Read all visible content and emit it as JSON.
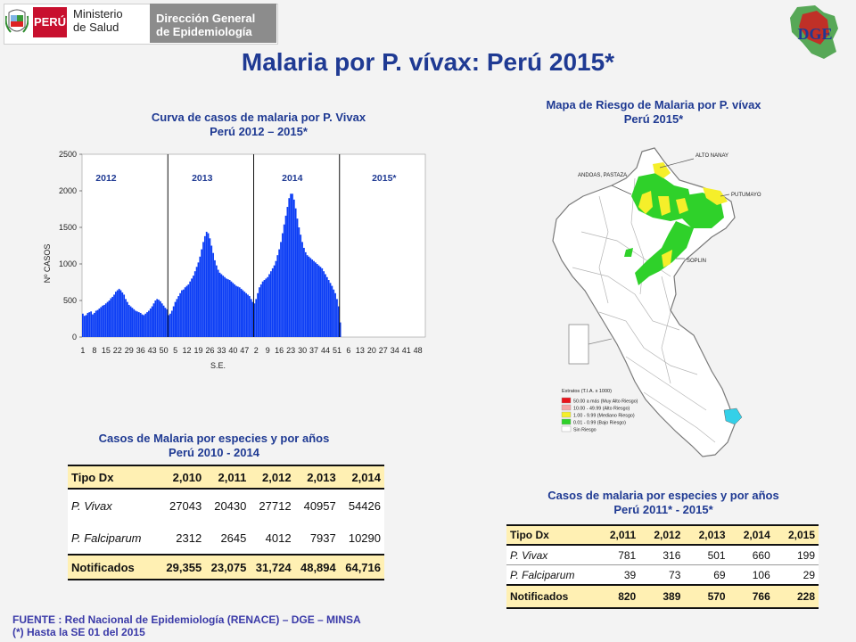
{
  "header": {
    "flag_text": "PERÚ",
    "ministry_line1": "Ministerio",
    "ministry_line2": "de Salud",
    "dge_line1": "Dirección General",
    "dge_line2": "de Epidemiología",
    "dge_logo_text": "DGE"
  },
  "main_title": "Malaria por P. vívax: Perú 2015*",
  "chart_data": {
    "type": "bar",
    "title": "Curva de casos de malaria por P. Vivax",
    "subtitle": "Perú 2012 – 2015*",
    "xlabel": "S.E.",
    "ylabel": "Nº CASOS",
    "ylim": [
      0,
      2500
    ],
    "yticks": [
      0,
      500,
      1000,
      1500,
      2000,
      2500
    ],
    "period_labels": [
      "2012",
      "2013",
      "2014",
      "2015*"
    ],
    "xtick_labels": [
      "1",
      "8",
      "15",
      "22",
      "29",
      "36",
      "43",
      "50",
      "5",
      "12",
      "19",
      "26",
      "33",
      "40",
      "47",
      "2",
      "9",
      "16",
      "23",
      "30",
      "37",
      "44",
      "51",
      "6",
      "13",
      "20",
      "27",
      "34",
      "41",
      "48"
    ],
    "color": "#0b3df5",
    "series": [
      {
        "period": "2012",
        "values": [
          320,
          290,
          300,
          330,
          340,
          350,
          310,
          330,
          360,
          370,
          390,
          410,
          430,
          440,
          460,
          480,
          500,
          530,
          550,
          580,
          620,
          640,
          660,
          640,
          610,
          580,
          520,
          480,
          440,
          420,
          400,
          380,
          360,
          350,
          340,
          330,
          310,
          300,
          320,
          340,
          360,
          390,
          420,
          460,
          500,
          520,
          510,
          490,
          460,
          430,
          400,
          380
        ]
      },
      {
        "period": "2013",
        "values": [
          300,
          320,
          360,
          420,
          480,
          520,
          560,
          600,
          640,
          650,
          680,
          700,
          720,
          760,
          800,
          840,
          900,
          960,
          1020,
          1100,
          1200,
          1300,
          1380,
          1440,
          1420,
          1350,
          1250,
          1150,
          1050,
          980,
          920,
          880,
          860,
          840,
          820,
          800,
          790,
          780,
          760,
          740,
          720,
          700,
          690,
          680,
          660,
          640,
          620,
          600,
          580,
          560,
          520,
          480
        ]
      },
      {
        "period": "2014",
        "values": [
          460,
          520,
          600,
          680,
          720,
          760,
          780,
          800,
          820,
          860,
          900,
          940,
          980,
          1040,
          1120,
          1200,
          1300,
          1420,
          1540,
          1660,
          1780,
          1900,
          1960,
          1960,
          1880,
          1760,
          1620,
          1500,
          1400,
          1300,
          1220,
          1160,
          1120,
          1100,
          1080,
          1060,
          1040,
          1020,
          1000,
          980,
          960,
          940,
          900,
          860,
          820,
          780,
          740,
          700,
          650,
          600,
          520,
          420
        ]
      },
      {
        "period": "2015*",
        "values": [
          200
        ]
      }
    ]
  },
  "map": {
    "title_line1": "Mapa de  Riesgo de Malaria por P. vívax",
    "title_line2": "Perú 2015*",
    "labels": [
      "ALTO NANAY",
      "ANDOAS, PASTAZA",
      "PUTUMAYO",
      "SOPLIN"
    ],
    "legend_title": "Estratos (T.I.A. x 1000)",
    "legend_items": [
      {
        "label": "50.00  a más (Muy Alto Riesgo)",
        "color": "#e8141c"
      },
      {
        "label": "10.00 - 49.99 (Alto Riesgo)",
        "color": "#f4a6a6"
      },
      {
        "label": "1.00 - 9.99 (Mediano Riesgo)",
        "color": "#f5ef2a"
      },
      {
        "label": "0.01 - 0.99 (Bajo Riesgo)",
        "color": "#2fd12a"
      },
      {
        "label": "Sin Riesgo",
        "color": "#ffffff"
      }
    ]
  },
  "table1": {
    "title_line1": "Casos de Malaria por especies y por años",
    "title_line2": "Perú 2010 - 2014",
    "headers": [
      "Tipo Dx",
      "2,010",
      "2,011",
      "2,012",
      "2,013",
      "2,014"
    ],
    "rows": [
      [
        "P. Vivax",
        "27043",
        "20430",
        "27712",
        "40957",
        "54426"
      ],
      [
        "P. Falciparum",
        "2312",
        "2645",
        "4012",
        "7937",
        "10290"
      ]
    ],
    "total": [
      "Notificados",
      "29,355",
      "23,075",
      "31,724",
      "48,894",
      "64,716"
    ]
  },
  "table2": {
    "title_line1": "Casos de malaria por especies y por años",
    "title_line2": "Perú 2011* -  2015*",
    "headers": [
      "Tipo Dx",
      "2,011",
      "2,012",
      "2,013",
      "2,014",
      "2,015"
    ],
    "rows": [
      [
        "P. Vivax",
        "781",
        "316",
        "501",
        "660",
        "199"
      ],
      [
        "P. Falciparum",
        "39",
        "73",
        "69",
        "106",
        "29"
      ]
    ],
    "total": [
      "Notificados",
      "820",
      "389",
      "570",
      "766",
      "228"
    ]
  },
  "source_line1": "FUENTE : Red Nacional de Epidemiología (RENACE) – DGE – MINSA",
  "source_line2": "(*) Hasta la SE 01 del 2015"
}
